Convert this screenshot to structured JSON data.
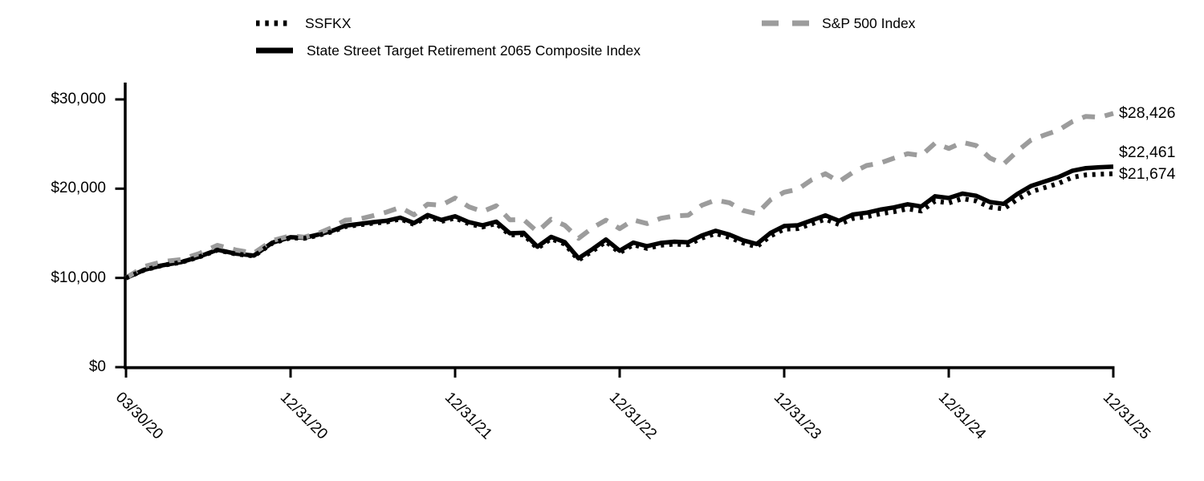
{
  "colors": {
    "black_series": "#000000",
    "gray_series": "#9c9c9c",
    "axis": "#000000",
    "background": "#ffffff"
  },
  "legend": {
    "items": [
      {
        "label": "SSFKX",
        "style": "dotted",
        "color": "#000000"
      },
      {
        "label": "State Street Target Retirement 2065 Composite Index",
        "style": "solid",
        "color": "#000000"
      },
      {
        "label": "S&P 500 Index",
        "style": "dashed",
        "color": "#9c9c9c"
      }
    ]
  },
  "end_labels": [
    {
      "series": "S&P 500 Index",
      "text": "$28,426",
      "value": 28426
    },
    {
      "series": "State Street Target Retirement 2065 Composite Index",
      "text": "$22,461",
      "value": 22461
    },
    {
      "series": "SSFKX",
      "text": "$21,674",
      "value": 21674
    }
  ],
  "chart_data": {
    "type": "line",
    "title": "",
    "xlabel": "",
    "ylabel": "",
    "grid": false,
    "legend_position": "top",
    "frequency": "monthly",
    "start_date": "03/30/20",
    "end_date": "12/31/25",
    "ylim": [
      0,
      31900
    ],
    "y_tick_values": [
      0,
      10000,
      20000,
      30000
    ],
    "y_tick_labels": [
      "$0",
      "$10,000",
      "$20,000",
      "$30,000"
    ],
    "x_tick_labels": [
      "03/30/20",
      "12/31/20",
      "12/31/21",
      "12/31/22",
      "12/31/23",
      "12/31/24",
      "12/31/25"
    ],
    "x_tick_month_index": [
      0,
      9,
      21,
      33,
      45,
      57,
      69
    ],
    "series": [
      {
        "name": "State Street Target Retirement 2065 Composite Index",
        "style": "solid",
        "color": "#000000",
        "final_value": 22461,
        "values": [
          10000,
          10900,
          11420,
          11760,
          12380,
          13150,
          12720,
          12500,
          13950,
          14560,
          14500,
          14850,
          15250,
          15850,
          16050,
          16250,
          16400,
          16750,
          16150,
          17050,
          16500,
          16900,
          16250,
          15900,
          16300,
          15000,
          15050,
          13500,
          14600,
          14000,
          12200,
          13200,
          14300,
          13050,
          13960,
          13550,
          13920,
          14060,
          13990,
          14760,
          15280,
          14850,
          14210,
          13800,
          15040,
          15820,
          15900,
          16450,
          17000,
          16400,
          17100,
          17300,
          17650,
          17900,
          18250,
          18000,
          19150,
          18950,
          19450,
          19200,
          18500,
          18300,
          19400,
          20300,
          20800,
          21300,
          22000,
          22300,
          22400,
          22461
        ]
      },
      {
        "name": "S&P 500 Index",
        "style": "dashed",
        "color": "#9c9c9c",
        "final_value": 28426,
        "values": [
          10000,
          11280,
          11820,
          12050,
          12730,
          13650,
          13130,
          12780,
          14180,
          14720,
          14570,
          14980,
          15630,
          16470,
          16580,
          16970,
          17370,
          17900,
          17070,
          18260,
          18140,
          18950,
          17970,
          17430,
          18080,
          16500,
          16530,
          15170,
          16570,
          15890,
          14430,
          15590,
          16470,
          15520,
          16490,
          16090,
          16680,
          16940,
          17020,
          18140,
          18720,
          18420,
          17550,
          17180,
          18750,
          19600,
          19930,
          20990,
          21670,
          20780,
          21810,
          22590,
          22870,
          23420,
          23920,
          23710,
          25100,
          24500,
          25190,
          24830,
          23430,
          22750,
          24200,
          25450,
          26020,
          26550,
          27500,
          28100,
          28000,
          28426
        ]
      },
      {
        "name": "SSFKX",
        "style": "dotted",
        "color": "#000000",
        "final_value": 21674,
        "values": [
          10000,
          10890,
          11410,
          11740,
          12350,
          13120,
          12680,
          12460,
          13890,
          14490,
          14430,
          14770,
          15160,
          15750,
          15940,
          16130,
          16270,
          16610,
          16000,
          16890,
          16330,
          16720,
          16070,
          15710,
          16100,
          14810,
          14850,
          13310,
          14390,
          13790,
          12010,
          12990,
          14070,
          12830,
          13720,
          13310,
          13660,
          13800,
          13720,
          14470,
          14970,
          14540,
          13910,
          13500,
          14700,
          15460,
          15530,
          16060,
          16580,
          15990,
          16660,
          16850,
          17180,
          17420,
          17750,
          17500,
          18600,
          18400,
          18880,
          18620,
          17930,
          17730,
          18790,
          19650,
          20120,
          20590,
          21260,
          21540,
          21620,
          21674
        ]
      }
    ]
  }
}
